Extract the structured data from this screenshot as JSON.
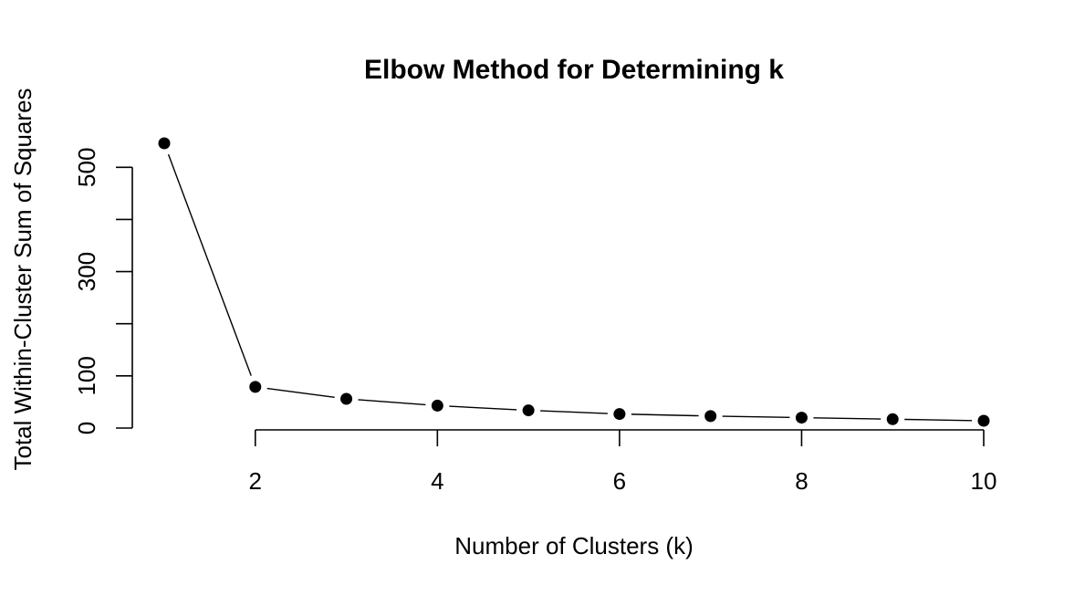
{
  "chart_data": {
    "type": "line",
    "title": "Elbow Method for Determining k",
    "xlabel": "Number of Clusters (k)",
    "ylabel": "Total Within-Cluster Sum of Squares",
    "x": [
      1,
      2,
      3,
      4,
      5,
      6,
      7,
      8,
      9,
      10
    ],
    "y": [
      546,
      79,
      56,
      43,
      34,
      27,
      23,
      20,
      17,
      14
    ],
    "xlim": [
      1,
      10
    ],
    "ylim": [
      0,
      546
    ],
    "xticks": [
      2,
      4,
      6,
      8,
      10
    ],
    "xtick_labels": [
      "2",
      "4",
      "6",
      "8",
      "10"
    ],
    "yticks": [
      0,
      100,
      200,
      300,
      400,
      500
    ],
    "ytick_labels": [
      "0",
      "100",
      "",
      "300",
      "",
      "500"
    ],
    "line_style": "points-connected-by-lines",
    "grid": false,
    "legend": "none",
    "colors": {
      "line": "#000000",
      "points": "#000000",
      "background": "#ffffff"
    }
  }
}
